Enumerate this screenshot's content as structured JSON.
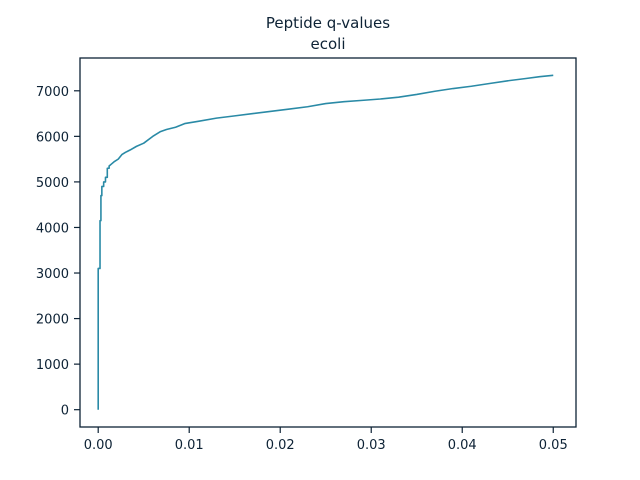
{
  "chart_data": {
    "type": "line",
    "title": "Peptide q-values",
    "subtitle": "ecoli",
    "xlabel": "",
    "ylabel": "",
    "xlim": [
      -0.002,
      0.0525
    ],
    "ylim": [
      -380,
      7720
    ],
    "grid": false,
    "x_ticks": [
      0.0,
      0.01,
      0.02,
      0.03,
      0.04,
      0.05
    ],
    "x_tick_labels": [
      "0.00",
      "0.01",
      "0.02",
      "0.03",
      "0.04",
      "0.05"
    ],
    "y_ticks": [
      0,
      1000,
      2000,
      3000,
      4000,
      5000,
      6000,
      7000
    ],
    "y_tick_labels": [
      "0",
      "1000",
      "2000",
      "3000",
      "4000",
      "5000",
      "6000",
      "7000"
    ],
    "line_color": "#2a8aa6",
    "axis_color": "#0d2235",
    "series": [
      {
        "x": [
          0.0,
          0.0,
          0.0002,
          0.0002,
          0.0003,
          0.0003,
          0.0004,
          0.0004,
          0.0006,
          0.0006,
          0.0008,
          0.0008,
          0.001,
          0.001,
          0.0012,
          0.0012,
          0.0015,
          0.0018,
          0.0022,
          0.0026,
          0.003,
          0.0035,
          0.0042,
          0.005,
          0.006,
          0.0068,
          0.0075,
          0.0085,
          0.0095,
          0.011,
          0.013,
          0.015,
          0.017,
          0.019,
          0.021,
          0.023,
          0.025,
          0.027,
          0.029,
          0.031,
          0.033,
          0.035,
          0.037,
          0.039,
          0.041,
          0.043,
          0.045,
          0.047,
          0.0485,
          0.05
        ],
        "y": [
          0,
          3100,
          3100,
          4150,
          4150,
          4700,
          4700,
          4900,
          4900,
          5000,
          5000,
          5100,
          5100,
          5300,
          5300,
          5350,
          5400,
          5450,
          5500,
          5600,
          5650,
          5700,
          5780,
          5850,
          6000,
          6100,
          6150,
          6200,
          6280,
          6330,
          6400,
          6450,
          6500,
          6550,
          6600,
          6650,
          6720,
          6760,
          6790,
          6820,
          6860,
          6920,
          6990,
          7050,
          7100,
          7160,
          7220,
          7270,
          7310,
          7340
        ]
      }
    ]
  }
}
